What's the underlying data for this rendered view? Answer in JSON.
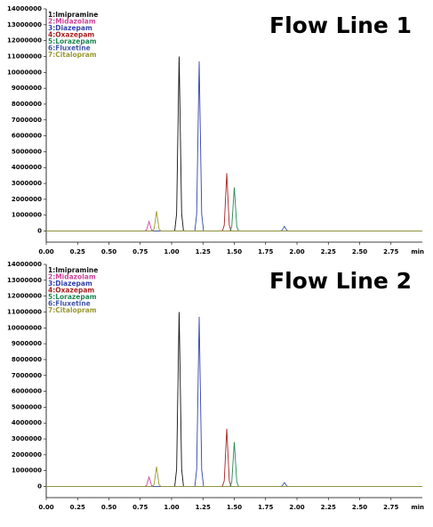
{
  "chart_data": [
    {
      "type": "line",
      "title": "Flow Line 1",
      "xlabel": "min",
      "xlim": [
        0,
        3.0
      ],
      "ylim": [
        -700000,
        14000000
      ],
      "xticks": [
        {
          "value": 0,
          "label": "0.00"
        },
        {
          "value": 0.25,
          "label": "0.25"
        },
        {
          "value": 0.5,
          "label": "0.50"
        },
        {
          "value": 0.75,
          "label": "0.75"
        },
        {
          "value": 1,
          "label": "1.00"
        },
        {
          "value": 1.25,
          "label": "1.25"
        },
        {
          "value": 1.5,
          "label": "1.50"
        },
        {
          "value": 1.75,
          "label": "1.75"
        },
        {
          "value": 2,
          "label": "2.00"
        },
        {
          "value": 2.25,
          "label": "2.25"
        },
        {
          "value": 2.5,
          "label": "2.50"
        },
        {
          "value": 2.75,
          "label": "2.75"
        }
      ],
      "yticks": [
        0,
        1000000,
        2000000,
        3000000,
        4000000,
        5000000,
        6000000,
        7000000,
        8000000,
        9000000,
        10000000,
        11000000,
        12000000,
        13000000,
        14000000
      ],
      "series": [
        {
          "name": "1:Imipramine",
          "color": "#111111",
          "x": [
            0,
            1.025,
            1.04,
            1.05,
            1.06,
            1.07,
            1.08,
            1.095,
            3.0
          ],
          "values": [
            0,
            0,
            1100000,
            6050000,
            11000000,
            6050000,
            1100000,
            0,
            0
          ]
        },
        {
          "name": "2:Midazolam",
          "color": "#cc4499",
          "x": [
            0,
            0.785,
            0.8,
            0.81,
            0.82,
            0.83,
            0.84,
            0.855,
            3.0
          ],
          "values": [
            0,
            0,
            60000,
            330000,
            600000,
            330000,
            60000,
            0,
            0
          ]
        },
        {
          "name": "3:Diazepam",
          "color": "#3344aa",
          "x": [
            0,
            1.185,
            1.2,
            1.21,
            1.22,
            1.23,
            1.24,
            1.255,
            3.0
          ],
          "values": [
            0,
            0,
            1070000,
            5885000,
            10700000,
            5885000,
            1070000,
            0,
            0
          ]
        },
        {
          "name": "4:Oxazepam",
          "color": "#aa2222",
          "x": [
            0,
            1.405,
            1.42,
            1.43,
            1.44,
            1.45,
            1.46,
            1.475,
            3.0
          ],
          "values": [
            0,
            0,
            365000,
            2007500,
            3650000,
            2007500,
            365000,
            0,
            0
          ]
        },
        {
          "name": "5:Lorazepam",
          "color": "#228855",
          "x": [
            0,
            1.465,
            1.48,
            1.49,
            1.5,
            1.51,
            1.52,
            1.535,
            3.0
          ],
          "values": [
            0,
            0,
            275000,
            1512500,
            2750000,
            1512500,
            275000,
            0,
            0
          ]
        },
        {
          "name": "6:Fluxetine",
          "color": "#4455aa",
          "x": [
            0,
            1.865,
            1.88,
            1.89,
            1.9,
            1.91,
            1.92,
            1.935,
            3.0
          ],
          "values": [
            0,
            0,
            30000,
            165000,
            300000,
            165000,
            30000,
            0,
            0
          ]
        },
        {
          "name": "7:Citalopram",
          "color": "#999933",
          "x": [
            0,
            0.845,
            0.86,
            0.87,
            0.88,
            0.89,
            0.9,
            0.915,
            3.0
          ],
          "values": [
            0,
            0,
            125000,
            687500,
            1250000,
            687500,
            125000,
            0,
            0
          ]
        }
      ]
    },
    {
      "type": "line",
      "title": "Flow Line 2",
      "xlabel": "min",
      "xlim": [
        0,
        3.0
      ],
      "ylim": [
        -700000,
        14000000
      ],
      "xticks": [
        {
          "value": 0,
          "label": "0.00"
        },
        {
          "value": 0.25,
          "label": "0.25"
        },
        {
          "value": 0.5,
          "label": "0.50"
        },
        {
          "value": 0.75,
          "label": "0.75"
        },
        {
          "value": 1,
          "label": "1.00"
        },
        {
          "value": 1.25,
          "label": "1.25"
        },
        {
          "value": 1.5,
          "label": "1.50"
        },
        {
          "value": 1.75,
          "label": "1.75"
        },
        {
          "value": 2,
          "label": "2.00"
        },
        {
          "value": 2.25,
          "label": "2.25"
        },
        {
          "value": 2.5,
          "label": "2.50"
        },
        {
          "value": 2.75,
          "label": "2.75"
        }
      ],
      "yticks": [
        0,
        1000000,
        2000000,
        3000000,
        4000000,
        5000000,
        6000000,
        7000000,
        8000000,
        9000000,
        10000000,
        11000000,
        12000000,
        13000000,
        14000000
      ],
      "series": [
        {
          "name": "1:Imipramine",
          "color": "#111111",
          "x": [
            0,
            1.025,
            1.04,
            1.05,
            1.06,
            1.07,
            1.08,
            1.095,
            3.0
          ],
          "values": [
            0,
            0,
            1100000,
            6050000,
            11000000,
            6050000,
            1100000,
            0,
            0
          ]
        },
        {
          "name": "2:Midazolam",
          "color": "#cc4499",
          "x": [
            0,
            0.785,
            0.8,
            0.81,
            0.82,
            0.83,
            0.84,
            0.855,
            3.0
          ],
          "values": [
            0,
            0,
            60000,
            330000,
            600000,
            330000,
            60000,
            0,
            0
          ]
        },
        {
          "name": "3:Diazepam",
          "color": "#3344aa",
          "x": [
            0,
            1.185,
            1.2,
            1.21,
            1.22,
            1.23,
            1.24,
            1.255,
            3.0
          ],
          "values": [
            0,
            0,
            1070000,
            5885000,
            10700000,
            5885000,
            1070000,
            0,
            0
          ]
        },
        {
          "name": "4:Oxazepam",
          "color": "#aa2222",
          "x": [
            0,
            1.405,
            1.42,
            1.43,
            1.44,
            1.45,
            1.46,
            1.475,
            3.0
          ],
          "values": [
            0,
            0,
            365000,
            2007500,
            3650000,
            2007500,
            365000,
            0,
            0
          ]
        },
        {
          "name": "5:Lorazepam",
          "color": "#228855",
          "x": [
            0,
            1.465,
            1.48,
            1.49,
            1.5,
            1.51,
            1.52,
            1.535,
            3.0
          ],
          "values": [
            0,
            0,
            280000,
            1540000,
            2800000,
            1540000,
            280000,
            0,
            0
          ]
        },
        {
          "name": "6:Fluxetine",
          "color": "#4455aa",
          "x": [
            0,
            1.865,
            1.88,
            1.89,
            1.9,
            1.91,
            1.92,
            1.935,
            3.0
          ],
          "values": [
            0,
            0,
            25000,
            137500,
            250000,
            137500,
            25000,
            0,
            0
          ]
        },
        {
          "name": "7:Citalopram",
          "color": "#999933",
          "x": [
            0,
            0.845,
            0.86,
            0.87,
            0.88,
            0.89,
            0.9,
            0.915,
            3.0
          ],
          "values": [
            0,
            0,
            125000,
            687500,
            1250000,
            687500,
            125000,
            0,
            0
          ]
        }
      ]
    }
  ]
}
